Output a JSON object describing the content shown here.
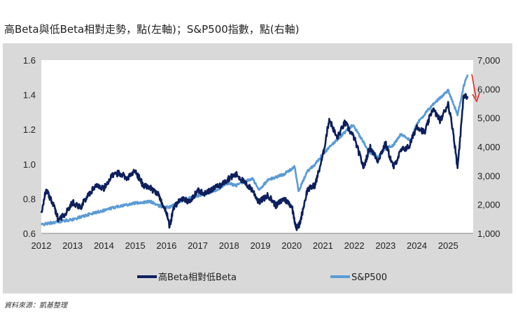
{
  "title": "高Beta與低Beta相對走勢，點(左軸)；S&P500指數，點(右軸)",
  "source": "資料來源：凱基整理",
  "colors": {
    "background": "#d9d9d9",
    "plot": "#ffffff",
    "series_ratio": "#0d1f5c",
    "series_sp500": "#5b9bd5",
    "arrow": "#e0201b"
  },
  "chart_data": {
    "type": "line",
    "title": "高Beta與低Beta相對走勢，點(左軸)；S&P500指數，點(右軸)",
    "xlabel": "",
    "ylabel": "",
    "x_ticks": [
      "2012",
      "2013",
      "2014",
      "2015",
      "2016",
      "2017",
      "2018",
      "2019",
      "2020",
      "2021",
      "2022",
      "2023",
      "2024",
      "2025"
    ],
    "xlim": [
      2012.0,
      2025.8
    ],
    "ylim_left": [
      0.6,
      1.6
    ],
    "y_ticks_left": [
      "0.6",
      "0.8",
      "1.0",
      "1.2",
      "1.4",
      "1.6"
    ],
    "ylim_right": [
      1000,
      7000
    ],
    "y_ticks_right": [
      "1,000",
      "2,000",
      "3,000",
      "4,000",
      "5,000",
      "6,000",
      "7,000"
    ],
    "grid": false,
    "legend_position": "bottom",
    "series": [
      {
        "name": "高Beta相對低Beta",
        "axis": "left",
        "x": [
          2012.0,
          2012.15,
          2012.35,
          2012.55,
          2012.8,
          2013.0,
          2013.25,
          2013.5,
          2013.75,
          2014.0,
          2014.25,
          2014.5,
          2014.75,
          2015.0,
          2015.25,
          2015.5,
          2015.75,
          2016.0,
          2016.1,
          2016.25,
          2016.5,
          2016.75,
          2017.0,
          2017.25,
          2017.5,
          2017.75,
          2018.0,
          2018.25,
          2018.5,
          2018.75,
          2018.95,
          2019.25,
          2019.5,
          2019.75,
          2020.0,
          2020.15,
          2020.25,
          2020.5,
          2020.75,
          2021.0,
          2021.2,
          2021.45,
          2021.7,
          2022.0,
          2022.3,
          2022.5,
          2022.75,
          2023.0,
          2023.25,
          2023.5,
          2023.75,
          2024.0,
          2024.25,
          2024.5,
          2024.75,
          2025.0,
          2025.15,
          2025.3,
          2025.5,
          2025.62
        ],
        "values": [
          0.72,
          0.85,
          0.78,
          0.68,
          0.72,
          0.78,
          0.75,
          0.82,
          0.88,
          0.86,
          0.93,
          0.95,
          0.92,
          0.96,
          0.88,
          0.86,
          0.82,
          0.72,
          0.64,
          0.76,
          0.8,
          0.78,
          0.85,
          0.83,
          0.86,
          0.88,
          0.92,
          0.94,
          0.89,
          0.85,
          0.78,
          0.82,
          0.76,
          0.8,
          0.76,
          0.63,
          0.65,
          0.85,
          0.88,
          1.05,
          1.26,
          1.15,
          1.24,
          1.15,
          0.98,
          1.1,
          1.02,
          1.12,
          0.98,
          1.08,
          1.1,
          1.22,
          1.18,
          1.32,
          1.25,
          1.35,
          1.2,
          0.98,
          1.4,
          1.38
        ]
      },
      {
        "name": "S&P500",
        "axis": "right",
        "x": [
          2012.0,
          2012.5,
          2013.0,
          2013.5,
          2014.0,
          2014.5,
          2015.0,
          2015.5,
          2015.75,
          2016.1,
          2016.5,
          2017.0,
          2017.5,
          2018.0,
          2018.2,
          2018.75,
          2018.95,
          2019.25,
          2019.75,
          2020.1,
          2020.22,
          2020.5,
          2020.75,
          2021.0,
          2021.5,
          2021.95,
          2022.3,
          2022.5,
          2022.75,
          2023.0,
          2023.25,
          2023.5,
          2023.8,
          2024.0,
          2024.5,
          2024.75,
          2025.0,
          2025.15,
          2025.3,
          2025.5,
          2025.62
        ],
        "values": [
          1300,
          1400,
          1480,
          1650,
          1800,
          1950,
          2050,
          2100,
          1950,
          1900,
          2150,
          2300,
          2450,
          2750,
          2650,
          2900,
          2500,
          2850,
          3050,
          3300,
          2450,
          3150,
          3400,
          3750,
          4300,
          4750,
          4150,
          3800,
          3650,
          3950,
          4050,
          4450,
          4200,
          4800,
          5450,
          5700,
          5950,
          5550,
          5100,
          6100,
          6500
        ]
      }
    ],
    "annotation": "red arrow at end of series pointing down"
  }
}
